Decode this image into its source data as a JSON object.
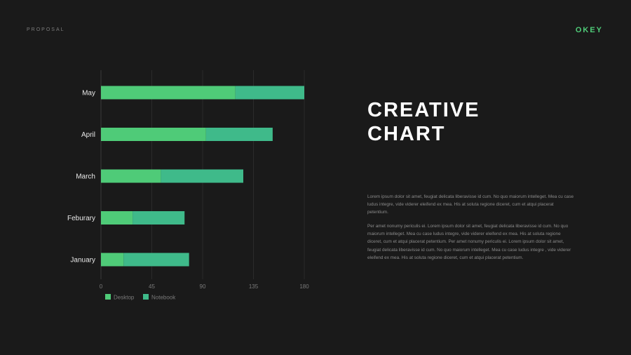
{
  "header": {
    "left_label": "PROPOSAL",
    "brand": "OKEY"
  },
  "title": {
    "line1": "CREATIVE",
    "line2": "CHART"
  },
  "paragraphs": [
    "Lorem ipsum dolor sit amet, feugiat delicata liberavisse id cum. No quo maiorum intelleget. Mea cu case ludus integre, vide viderer eleifend ex mea. His at soluta regione diceret, cum et atqui placerat petentium.",
    "Per amet nonumy periculis ei. Lorem ipsum dolor sit amet, feugiat delicata liberavisse id cum. No quo maiorum intelleget. Mea cu case ludus integre, vide viderer eleifend ex mea. His at soluta regione diceret, cum et atqui placerat petentium. Per amet nonumy periculis ei. Lorem ipsum dolor sit amet, feugiat delicata liberavisse id cum. No quo maiorum intelleget. Mea cu case ludus integre , vide viderer eleifend ex mea. His at soluta regione diceret, cum et atqui placerat petentium."
  ],
  "colors": {
    "desktop": "#4fcb78",
    "notebook": "#3fba8a",
    "grid": "#2b2b2b",
    "axis": "#3a3a3a",
    "label": "#e8e8e8",
    "tick": "#7a7a7a"
  },
  "chart_data": {
    "type": "bar",
    "orientation": "horizontal",
    "stacked": true,
    "categories": [
      "January",
      "Feburary",
      "March",
      "April",
      "May"
    ],
    "series": [
      {
        "name": "Desktop",
        "values": [
          20,
          28,
          53,
          93,
          119
        ]
      },
      {
        "name": "Notebook",
        "values": [
          58,
          46,
          73,
          59,
          61
        ]
      }
    ],
    "x_ticks": [
      0,
      45,
      90,
      135,
      180
    ],
    "xlim": [
      0,
      180
    ],
    "grid": true,
    "legend_position": "bottom-left"
  }
}
